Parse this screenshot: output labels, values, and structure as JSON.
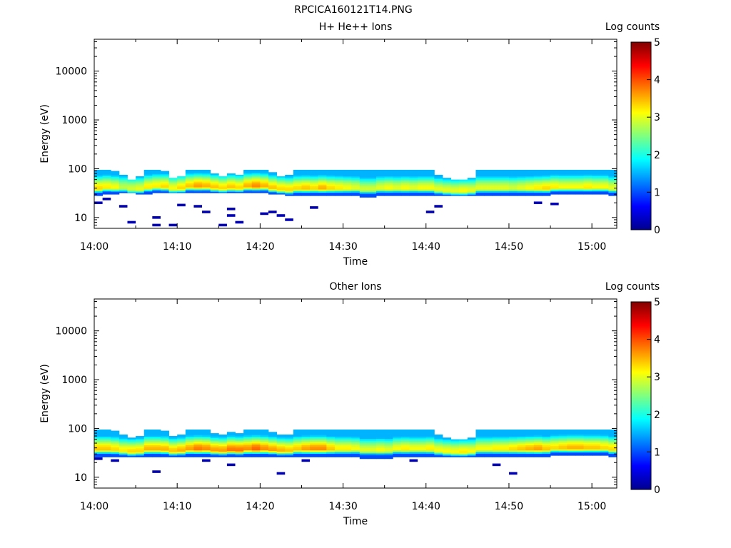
{
  "figure": {
    "title": "RPCICA160121T14.PNG"
  },
  "colorbar_title": "Log counts",
  "chart_data": [
    {
      "type": "heatmap",
      "title": "H+ He++ Ions",
      "xlabel": "Time",
      "ylabel": "Energy (eV)",
      "x_ticks": [
        "14:00",
        "14:10",
        "14:20",
        "14:30",
        "14:40",
        "14:50",
        "15:00"
      ],
      "x_range": [
        "14:00",
        "15:03"
      ],
      "y_scale": "log",
      "y_range": [
        6,
        45000
      ],
      "y_ticks": [
        "10",
        "100",
        "1000",
        "10000"
      ],
      "colorbar": {
        "label": "Log counts",
        "min": 0,
        "max": 5,
        "ticks": [
          "0",
          "1",
          "2",
          "3",
          "4",
          "5"
        ]
      },
      "columns": [
        {
          "t": "14:00",
          "lo": 28,
          "hi": 95,
          "peak": 3.3
        },
        {
          "t": "14:01",
          "lo": 30,
          "hi": 95,
          "peak": 3.2
        },
        {
          "t": "14:02",
          "lo": 30,
          "hi": 90,
          "peak": 3.1
        },
        {
          "t": "14:03",
          "lo": 32,
          "hi": 75,
          "peak": 2.8
        },
        {
          "t": "14:04",
          "lo": 32,
          "hi": 60,
          "peak": 2.9
        },
        {
          "t": "14:05",
          "lo": 30,
          "hi": 70,
          "peak": 3.0
        },
        {
          "t": "14:06",
          "lo": 30,
          "hi": 95,
          "peak": 3.2
        },
        {
          "t": "14:07",
          "lo": 32,
          "hi": 95,
          "peak": 3.2
        },
        {
          "t": "14:08",
          "lo": 32,
          "hi": 90,
          "peak": 3.3
        },
        {
          "t": "14:09",
          "lo": 32,
          "hi": 65,
          "peak": 3.1
        },
        {
          "t": "14:10",
          "lo": 32,
          "hi": 70,
          "peak": 3.3
        },
        {
          "t": "14:11",
          "lo": 32,
          "hi": 95,
          "peak": 3.4
        },
        {
          "t": "14:12",
          "lo": 32,
          "hi": 95,
          "peak": 3.6
        },
        {
          "t": "14:13",
          "lo": 32,
          "hi": 95,
          "peak": 3.5
        },
        {
          "t": "14:14",
          "lo": 32,
          "hi": 80,
          "peak": 3.4
        },
        {
          "t": "14:15",
          "lo": 32,
          "hi": 70,
          "peak": 3.3
        },
        {
          "t": "14:16",
          "lo": 32,
          "hi": 80,
          "peak": 3.4
        },
        {
          "t": "14:17",
          "lo": 32,
          "hi": 75,
          "peak": 3.3
        },
        {
          "t": "14:18",
          "lo": 32,
          "hi": 95,
          "peak": 3.5
        },
        {
          "t": "14:19",
          "lo": 32,
          "hi": 95,
          "peak": 3.7
        },
        {
          "t": "14:20",
          "lo": 32,
          "hi": 95,
          "peak": 3.5
        },
        {
          "t": "14:21",
          "lo": 30,
          "hi": 85,
          "peak": 3.4
        },
        {
          "t": "14:22",
          "lo": 30,
          "hi": 70,
          "peak": 3.3
        },
        {
          "t": "14:23",
          "lo": 28,
          "hi": 75,
          "peak": 3.3
        },
        {
          "t": "14:24",
          "lo": 28,
          "hi": 95,
          "peak": 3.3
        },
        {
          "t": "14:25",
          "lo": 28,
          "hi": 95,
          "peak": 3.4
        },
        {
          "t": "14:26",
          "lo": 28,
          "hi": 95,
          "peak": 3.3
        },
        {
          "t": "14:27",
          "lo": 28,
          "hi": 95,
          "peak": 3.5
        },
        {
          "t": "14:28",
          "lo": 28,
          "hi": 95,
          "peak": 3.3
        },
        {
          "t": "14:29",
          "lo": 28,
          "hi": 95,
          "peak": 3.2
        },
        {
          "t": "14:30",
          "lo": 28,
          "hi": 95,
          "peak": 3.1
        },
        {
          "t": "14:31",
          "lo": 28,
          "hi": 95,
          "peak": 3.0
        },
        {
          "t": "14:32",
          "lo": 26,
          "hi": 95,
          "peak": 2.9
        },
        {
          "t": "14:33",
          "lo": 26,
          "hi": 95,
          "peak": 2.9
        },
        {
          "t": "14:34",
          "lo": 28,
          "hi": 95,
          "peak": 3.0
        },
        {
          "t": "14:35",
          "lo": 28,
          "hi": 95,
          "peak": 3.1
        },
        {
          "t": "14:36",
          "lo": 28,
          "hi": 95,
          "peak": 3.0
        },
        {
          "t": "14:37",
          "lo": 28,
          "hi": 95,
          "peak": 3.1
        },
        {
          "t": "14:38",
          "lo": 28,
          "hi": 95,
          "peak": 3.0
        },
        {
          "t": "14:39",
          "lo": 28,
          "hi": 95,
          "peak": 3.1
        },
        {
          "t": "14:40",
          "lo": 28,
          "hi": 95,
          "peak": 3.1
        },
        {
          "t": "14:41",
          "lo": 28,
          "hi": 75,
          "peak": 3.0
        },
        {
          "t": "14:42",
          "lo": 28,
          "hi": 65,
          "peak": 3.0
        },
        {
          "t": "14:43",
          "lo": 28,
          "hi": 60,
          "peak": 3.0
        },
        {
          "t": "14:44",
          "lo": 28,
          "hi": 60,
          "peak": 3.1
        },
        {
          "t": "14:45",
          "lo": 28,
          "hi": 65,
          "peak": 3.0
        },
        {
          "t": "14:46",
          "lo": 28,
          "hi": 95,
          "peak": 3.0
        },
        {
          "t": "14:47",
          "lo": 28,
          "hi": 95,
          "peak": 3.0
        },
        {
          "t": "14:48",
          "lo": 28,
          "hi": 95,
          "peak": 3.0
        },
        {
          "t": "14:49",
          "lo": 28,
          "hi": 95,
          "peak": 3.0
        },
        {
          "t": "14:50",
          "lo": 28,
          "hi": 95,
          "peak": 2.9
        },
        {
          "t": "14:51",
          "lo": 28,
          "hi": 95,
          "peak": 3.0
        },
        {
          "t": "14:52",
          "lo": 28,
          "hi": 95,
          "peak": 3.1
        },
        {
          "t": "14:53",
          "lo": 28,
          "hi": 95,
          "peak": 3.2
        },
        {
          "t": "14:54",
          "lo": 28,
          "hi": 95,
          "peak": 3.3
        },
        {
          "t": "14:55",
          "lo": 30,
          "hi": 95,
          "peak": 3.2
        },
        {
          "t": "14:56",
          "lo": 30,
          "hi": 95,
          "peak": 3.1
        },
        {
          "t": "14:57",
          "lo": 30,
          "hi": 95,
          "peak": 3.1
        },
        {
          "t": "14:58",
          "lo": 30,
          "hi": 95,
          "peak": 3.1
        },
        {
          "t": "14:59",
          "lo": 30,
          "hi": 95,
          "peak": 3.2
        },
        {
          "t": "15:00",
          "lo": 30,
          "hi": 95,
          "peak": 3.1
        },
        {
          "t": "15:01",
          "lo": 30,
          "hi": 95,
          "peak": 3.1
        },
        {
          "t": "15:02",
          "lo": 28,
          "hi": 95,
          "peak": 3.0
        }
      ],
      "isolated_low_counts": [
        {
          "t": "14:00",
          "e": 20
        },
        {
          "t": "14:01",
          "e": 24
        },
        {
          "t": "14:03",
          "e": 17
        },
        {
          "t": "14:04",
          "e": 8
        },
        {
          "t": "14:07",
          "e": 10
        },
        {
          "t": "14:07",
          "e": 7
        },
        {
          "t": "14:09",
          "e": 7
        },
        {
          "t": "14:10",
          "e": 18
        },
        {
          "t": "14:12",
          "e": 17
        },
        {
          "t": "14:13",
          "e": 13
        },
        {
          "t": "14:15",
          "e": 7
        },
        {
          "t": "14:16",
          "e": 15
        },
        {
          "t": "14:16",
          "e": 11
        },
        {
          "t": "14:17",
          "e": 8
        },
        {
          "t": "14:20",
          "e": 12
        },
        {
          "t": "14:21",
          "e": 13
        },
        {
          "t": "14:22",
          "e": 11
        },
        {
          "t": "14:23",
          "e": 9
        },
        {
          "t": "14:26",
          "e": 16
        },
        {
          "t": "14:40",
          "e": 13
        },
        {
          "t": "14:41",
          "e": 17
        },
        {
          "t": "14:53",
          "e": 20
        },
        {
          "t": "14:55",
          "e": 19
        }
      ]
    },
    {
      "type": "heatmap",
      "title": "Other Ions",
      "xlabel": "Time",
      "ylabel": "Energy (eV)",
      "x_ticks": [
        "14:00",
        "14:10",
        "14:20",
        "14:30",
        "14:40",
        "14:50",
        "15:00"
      ],
      "x_range": [
        "14:00",
        "15:03"
      ],
      "y_scale": "log",
      "y_range": [
        6,
        45000
      ],
      "y_ticks": [
        "10",
        "100",
        "1000",
        "10000"
      ],
      "colorbar": {
        "label": "Log counts",
        "min": 0,
        "max": 5,
        "ticks": [
          "0",
          "1",
          "2",
          "3",
          "4",
          "5"
        ]
      },
      "columns": [
        {
          "t": "14:00",
          "lo": 26,
          "hi": 95,
          "peak": 3.4
        },
        {
          "t": "14:01",
          "lo": 26,
          "hi": 95,
          "peak": 3.4
        },
        {
          "t": "14:02",
          "lo": 26,
          "hi": 90,
          "peak": 3.3
        },
        {
          "t": "14:03",
          "lo": 26,
          "hi": 75,
          "peak": 3.2
        },
        {
          "t": "14:04",
          "lo": 26,
          "hi": 65,
          "peak": 3.3
        },
        {
          "t": "14:05",
          "lo": 26,
          "hi": 70,
          "peak": 3.3
        },
        {
          "t": "14:06",
          "lo": 26,
          "hi": 95,
          "peak": 3.5
        },
        {
          "t": "14:07",
          "lo": 26,
          "hi": 95,
          "peak": 3.5
        },
        {
          "t": "14:08",
          "lo": 26,
          "hi": 90,
          "peak": 3.5
        },
        {
          "t": "14:09",
          "lo": 26,
          "hi": 70,
          "peak": 3.4
        },
        {
          "t": "14:10",
          "lo": 26,
          "hi": 75,
          "peak": 3.5
        },
        {
          "t": "14:11",
          "lo": 26,
          "hi": 95,
          "peak": 3.6
        },
        {
          "t": "14:12",
          "lo": 26,
          "hi": 95,
          "peak": 3.8
        },
        {
          "t": "14:13",
          "lo": 26,
          "hi": 95,
          "peak": 3.7
        },
        {
          "t": "14:14",
          "lo": 26,
          "hi": 80,
          "peak": 3.6
        },
        {
          "t": "14:15",
          "lo": 26,
          "hi": 75,
          "peak": 3.6
        },
        {
          "t": "14:16",
          "lo": 26,
          "hi": 85,
          "peak": 3.8
        },
        {
          "t": "14:17",
          "lo": 26,
          "hi": 80,
          "peak": 3.8
        },
        {
          "t": "14:18",
          "lo": 26,
          "hi": 95,
          "peak": 3.7
        },
        {
          "t": "14:19",
          "lo": 26,
          "hi": 95,
          "peak": 3.9
        },
        {
          "t": "14:20",
          "lo": 26,
          "hi": 95,
          "peak": 3.7
        },
        {
          "t": "14:21",
          "lo": 26,
          "hi": 85,
          "peak": 3.6
        },
        {
          "t": "14:22",
          "lo": 26,
          "hi": 75,
          "peak": 3.5
        },
        {
          "t": "14:23",
          "lo": 26,
          "hi": 75,
          "peak": 3.4
        },
        {
          "t": "14:24",
          "lo": 26,
          "hi": 95,
          "peak": 3.4
        },
        {
          "t": "14:25",
          "lo": 26,
          "hi": 95,
          "peak": 3.6
        },
        {
          "t": "14:26",
          "lo": 26,
          "hi": 95,
          "peak": 3.7
        },
        {
          "t": "14:27",
          "lo": 26,
          "hi": 95,
          "peak": 3.7
        },
        {
          "t": "14:28",
          "lo": 26,
          "hi": 95,
          "peak": 3.4
        },
        {
          "t": "14:29",
          "lo": 26,
          "hi": 95,
          "peak": 3.2
        },
        {
          "t": "14:30",
          "lo": 26,
          "hi": 95,
          "peak": 3.2
        },
        {
          "t": "14:31",
          "lo": 26,
          "hi": 95,
          "peak": 3.1
        },
        {
          "t": "14:32",
          "lo": 24,
          "hi": 95,
          "peak": 3.0
        },
        {
          "t": "14:33",
          "lo": 24,
          "hi": 95,
          "peak": 3.0
        },
        {
          "t": "14:34",
          "lo": 24,
          "hi": 95,
          "peak": 3.1
        },
        {
          "t": "14:35",
          "lo": 24,
          "hi": 95,
          "peak": 3.0
        },
        {
          "t": "14:36",
          "lo": 26,
          "hi": 95,
          "peak": 3.1
        },
        {
          "t": "14:37",
          "lo": 26,
          "hi": 95,
          "peak": 3.2
        },
        {
          "t": "14:38",
          "lo": 26,
          "hi": 95,
          "peak": 3.1
        },
        {
          "t": "14:39",
          "lo": 26,
          "hi": 95,
          "peak": 3.1
        },
        {
          "t": "14:40",
          "lo": 26,
          "hi": 95,
          "peak": 3.2
        },
        {
          "t": "14:41",
          "lo": 26,
          "hi": 75,
          "peak": 3.1
        },
        {
          "t": "14:42",
          "lo": 26,
          "hi": 65,
          "peak": 3.1
        },
        {
          "t": "14:43",
          "lo": 26,
          "hi": 60,
          "peak": 3.1
        },
        {
          "t": "14:44",
          "lo": 26,
          "hi": 60,
          "peak": 3.2
        },
        {
          "t": "14:45",
          "lo": 26,
          "hi": 65,
          "peak": 3.1
        },
        {
          "t": "14:46",
          "lo": 26,
          "hi": 95,
          "peak": 3.1
        },
        {
          "t": "14:47",
          "lo": 26,
          "hi": 95,
          "peak": 3.1
        },
        {
          "t": "14:48",
          "lo": 26,
          "hi": 95,
          "peak": 3.2
        },
        {
          "t": "14:49",
          "lo": 26,
          "hi": 95,
          "peak": 3.2
        },
        {
          "t": "14:50",
          "lo": 26,
          "hi": 95,
          "peak": 3.3
        },
        {
          "t": "14:51",
          "lo": 26,
          "hi": 95,
          "peak": 3.4
        },
        {
          "t": "14:52",
          "lo": 26,
          "hi": 95,
          "peak": 3.5
        },
        {
          "t": "14:53",
          "lo": 26,
          "hi": 95,
          "peak": 3.6
        },
        {
          "t": "14:54",
          "lo": 26,
          "hi": 95,
          "peak": 3.4
        },
        {
          "t": "14:55",
          "lo": 28,
          "hi": 95,
          "peak": 3.3
        },
        {
          "t": "14:56",
          "lo": 28,
          "hi": 95,
          "peak": 3.4
        },
        {
          "t": "14:57",
          "lo": 28,
          "hi": 95,
          "peak": 3.5
        },
        {
          "t": "14:58",
          "lo": 28,
          "hi": 95,
          "peak": 3.5
        },
        {
          "t": "14:59",
          "lo": 28,
          "hi": 95,
          "peak": 3.4
        },
        {
          "t": "15:00",
          "lo": 28,
          "hi": 95,
          "peak": 3.4
        },
        {
          "t": "15:01",
          "lo": 28,
          "hi": 95,
          "peak": 3.3
        },
        {
          "t": "15:02",
          "lo": 26,
          "hi": 95,
          "peak": 3.3
        }
      ],
      "isolated_low_counts": [
        {
          "t": "14:00",
          "e": 24
        },
        {
          "t": "14:02",
          "e": 22
        },
        {
          "t": "14:07",
          "e": 13
        },
        {
          "t": "14:13",
          "e": 22
        },
        {
          "t": "14:16",
          "e": 18
        },
        {
          "t": "14:22",
          "e": 12
        },
        {
          "t": "14:25",
          "e": 22
        },
        {
          "t": "14:38",
          "e": 22
        },
        {
          "t": "14:48",
          "e": 18
        },
        {
          "t": "14:50",
          "e": 12
        }
      ]
    }
  ]
}
